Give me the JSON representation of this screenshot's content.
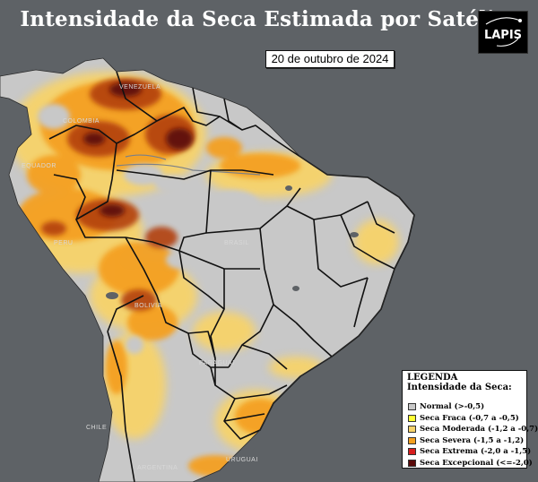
{
  "title": "Intensidade da Seca Estimada por Satélite",
  "date": "20 de outubro de 2024",
  "logo": {
    "text": "LAPIS"
  },
  "legend": {
    "title": "LEGENDA",
    "subtitle": "Intensidade da Seca:",
    "items": [
      {
        "label": "Normal (>-0,5)",
        "color": "#c8c8c8"
      },
      {
        "label": "Seca Fraca (-0,7 a -0,5)",
        "color": "#ffff33"
      },
      {
        "label": "Seca Moderada (-1,2 a -0,7)",
        "color": "#f7d36b"
      },
      {
        "label": "Seca Severa (-1,5 a -1,2)",
        "color": "#f4a020"
      },
      {
        "label": "Seca Extrema (-2,0 a -1,5)",
        "color": "#d81e1e"
      },
      {
        "label": "Seca Excepcional (<=-2,0)",
        "color": "#5a0a0a"
      }
    ]
  },
  "country_labels": {
    "venezuela": "VENEZUELA",
    "colombia": "COLOMBIA",
    "ecuador": "EQUADOR",
    "peru": "PERU",
    "brasil": "BRASIL",
    "bolivia": "BOLIVIA",
    "paraguai": "PARAGUAI",
    "chile": "CHILE",
    "argentina": "ARGENTINA",
    "uruguai": "URUGUAI"
  },
  "colors": {
    "ocean": "#5e6266",
    "land_normal": "#c8c8c8",
    "border": "#111111"
  }
}
